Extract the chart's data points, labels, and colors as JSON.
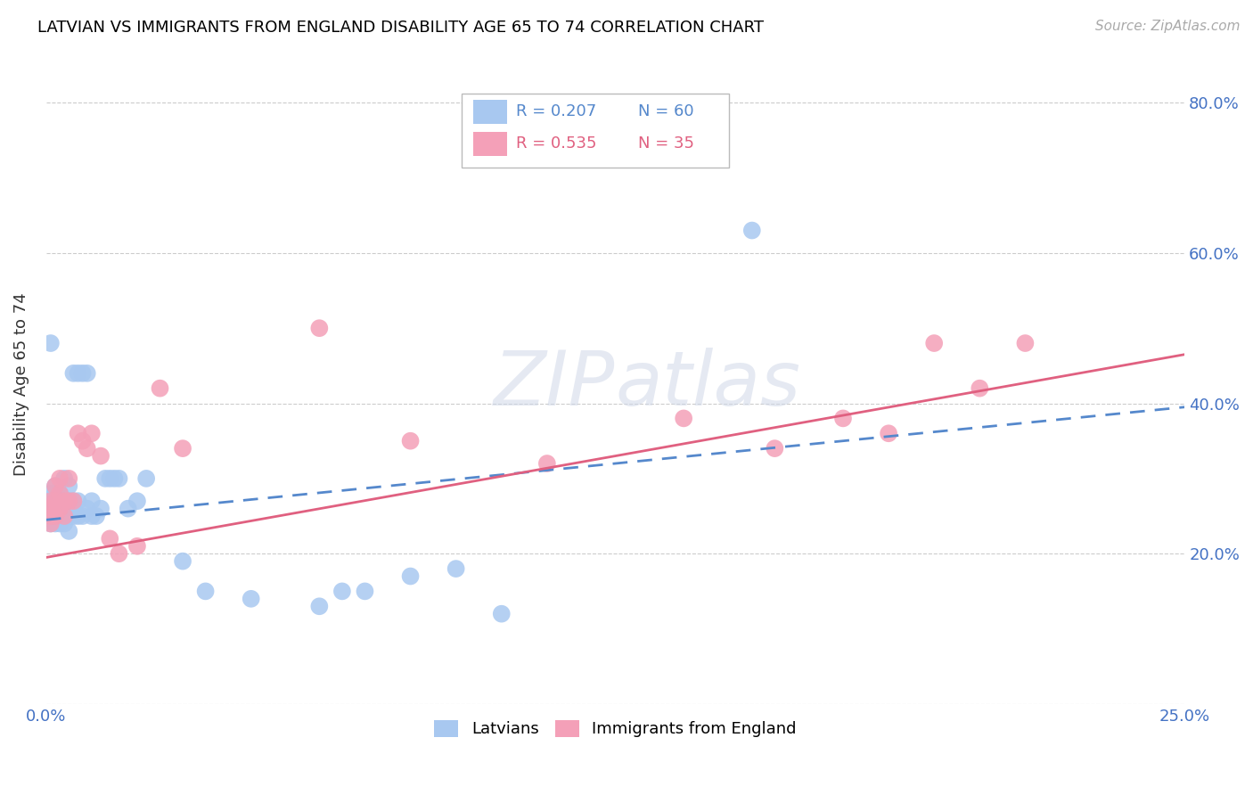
{
  "title": "LATVIAN VS IMMIGRANTS FROM ENGLAND DISABILITY AGE 65 TO 74 CORRELATION CHART",
  "source": "Source: ZipAtlas.com",
  "ylabel": "Disability Age 65 to 74",
  "x_min": 0.0,
  "x_max": 0.25,
  "y_min": 0.0,
  "y_max": 0.85,
  "x_ticks": [
    0.0,
    0.05,
    0.1,
    0.15,
    0.2,
    0.25
  ],
  "y_ticks": [
    0.0,
    0.2,
    0.4,
    0.6,
    0.8
  ],
  "latvian_color": "#a8c8f0",
  "england_color": "#f4a0b8",
  "trend_latvian_color": "#5588cc",
  "trend_england_color": "#e06080",
  "watermark": "ZIPatlas",
  "legend_R1": "R = 0.207",
  "legend_N1": "N = 60",
  "legend_R2": "R = 0.535",
  "legend_N2": "N = 35",
  "latvian_x": [
    0.001,
    0.001,
    0.001,
    0.001,
    0.001,
    0.001,
    0.001,
    0.001,
    0.002,
    0.002,
    0.002,
    0.002,
    0.002,
    0.002,
    0.002,
    0.003,
    0.003,
    0.003,
    0.003,
    0.003,
    0.004,
    0.004,
    0.004,
    0.004,
    0.004,
    0.005,
    0.005,
    0.005,
    0.005,
    0.006,
    0.006,
    0.006,
    0.007,
    0.007,
    0.007,
    0.008,
    0.008,
    0.009,
    0.009,
    0.01,
    0.01,
    0.011,
    0.012,
    0.013,
    0.014,
    0.015,
    0.016,
    0.018,
    0.02,
    0.022,
    0.03,
    0.035,
    0.045,
    0.06,
    0.065,
    0.07,
    0.08,
    0.09,
    0.1,
    0.155
  ],
  "latvian_y": [
    0.24,
    0.25,
    0.26,
    0.26,
    0.27,
    0.27,
    0.28,
    0.48,
    0.24,
    0.25,
    0.26,
    0.27,
    0.27,
    0.28,
    0.29,
    0.24,
    0.25,
    0.26,
    0.27,
    0.28,
    0.24,
    0.25,
    0.26,
    0.27,
    0.3,
    0.23,
    0.25,
    0.27,
    0.29,
    0.25,
    0.27,
    0.44,
    0.25,
    0.27,
    0.44,
    0.25,
    0.44,
    0.26,
    0.44,
    0.25,
    0.27,
    0.25,
    0.26,
    0.3,
    0.3,
    0.3,
    0.3,
    0.26,
    0.27,
    0.3,
    0.19,
    0.15,
    0.14,
    0.13,
    0.15,
    0.15,
    0.17,
    0.18,
    0.12,
    0.63
  ],
  "england_x": [
    0.001,
    0.001,
    0.001,
    0.001,
    0.002,
    0.002,
    0.002,
    0.003,
    0.003,
    0.003,
    0.004,
    0.004,
    0.005,
    0.005,
    0.006,
    0.007,
    0.008,
    0.009,
    0.01,
    0.012,
    0.014,
    0.016,
    0.02,
    0.025,
    0.03,
    0.06,
    0.08,
    0.11,
    0.14,
    0.16,
    0.175,
    0.185,
    0.195,
    0.205,
    0.215
  ],
  "england_y": [
    0.24,
    0.25,
    0.26,
    0.27,
    0.25,
    0.27,
    0.29,
    0.26,
    0.28,
    0.3,
    0.25,
    0.27,
    0.27,
    0.3,
    0.27,
    0.36,
    0.35,
    0.34,
    0.36,
    0.33,
    0.22,
    0.2,
    0.21,
    0.42,
    0.34,
    0.5,
    0.35,
    0.32,
    0.38,
    0.34,
    0.38,
    0.36,
    0.48,
    0.42,
    0.48
  ],
  "trend_lat_x0": 0.0,
  "trend_lat_y0": 0.245,
  "trend_lat_x1": 0.25,
  "trend_lat_y1": 0.395,
  "trend_eng_x0": 0.0,
  "trend_eng_y0": 0.195,
  "trend_eng_x1": 0.25,
  "trend_eng_y1": 0.465
}
